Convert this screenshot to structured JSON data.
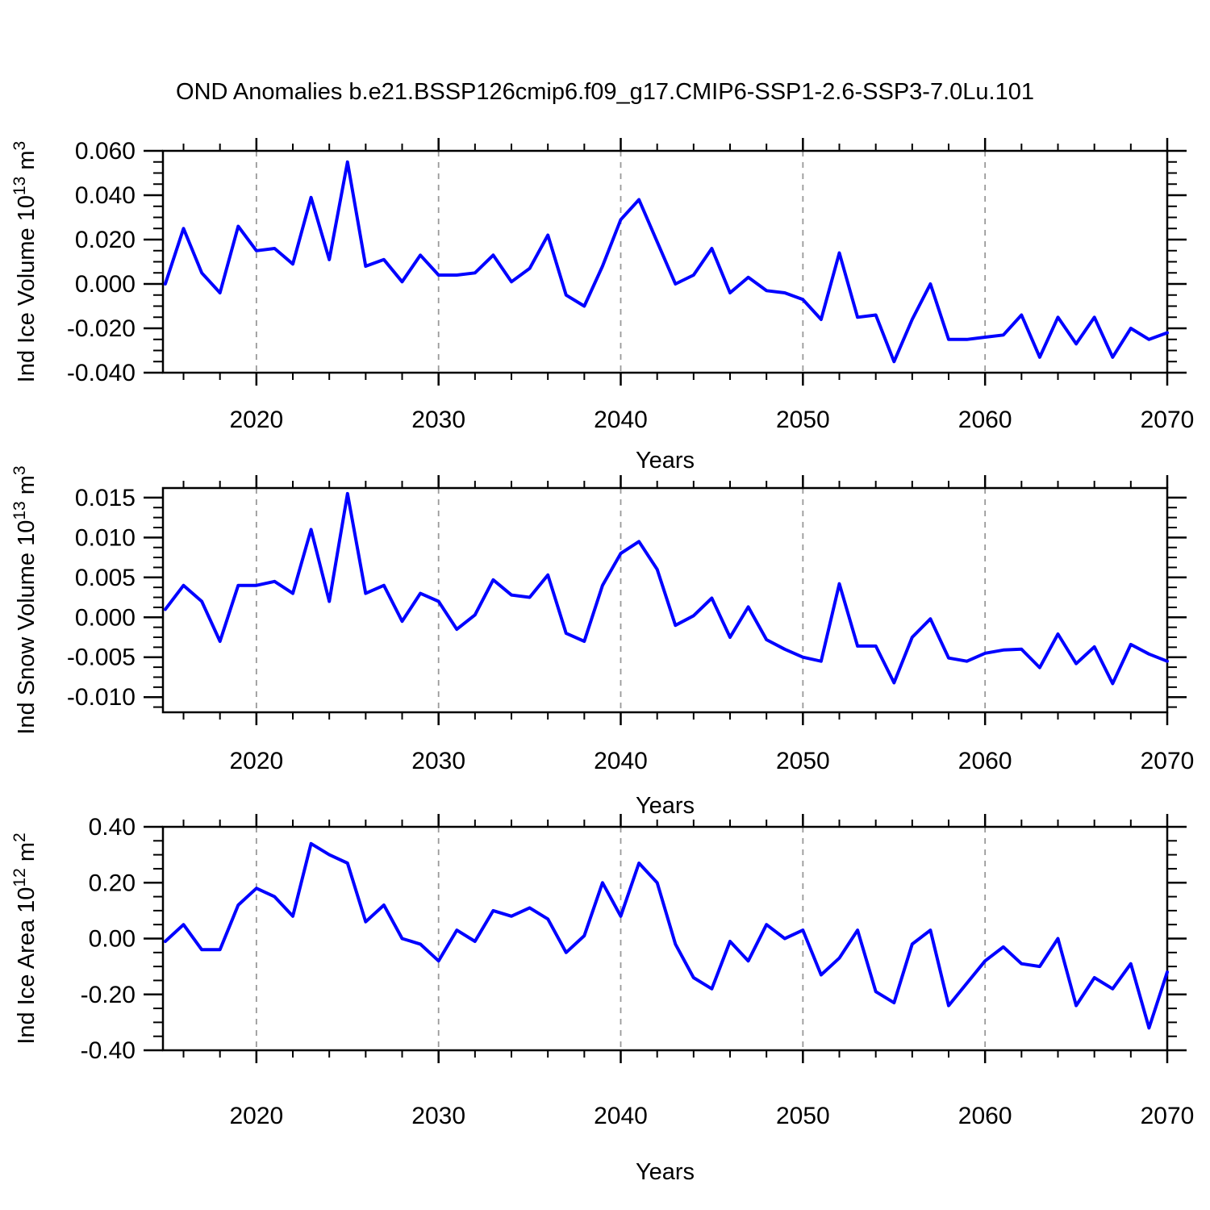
{
  "title": "OND Anomalies b.e21.BSSP126cmip6.f09_g17.CMIP6-SSP1-2.6-SSP3-7.0Lu.101",
  "style": {
    "line_color": "#0000ff",
    "grid_color": "#999999",
    "axis_color": "#000000",
    "background": "#ffffff"
  },
  "chart_data": [
    {
      "type": "line",
      "name": "ind-ice-volume",
      "ylabel": "Ind Ice Volume 10^13 m^3",
      "ylabel_parts": [
        {
          "t": "Ind Ice Volume 10"
        },
        {
          "t": "13",
          "sup": true
        },
        {
          "t": " m"
        },
        {
          "t": "3",
          "sup": true
        }
      ],
      "xlabel": "Years",
      "x": {
        "start": 2015,
        "end": 2070,
        "step": 1
      },
      "values": [
        0.0,
        0.025,
        0.005,
        -0.004,
        0.026,
        0.015,
        0.016,
        0.009,
        0.039,
        0.011,
        0.055,
        0.008,
        0.011,
        0.001,
        0.013,
        0.004,
        0.004,
        0.005,
        0.013,
        0.001,
        0.007,
        0.022,
        -0.005,
        -0.01,
        0.008,
        0.029,
        0.038,
        0.019,
        0.0,
        0.004,
        0.016,
        -0.004,
        0.003,
        -0.003,
        -0.004,
        -0.007,
        -0.016,
        0.014,
        -0.015,
        -0.014,
        -0.035,
        -0.016,
        0.0,
        -0.025,
        -0.025,
        -0.024,
        -0.023,
        -0.014,
        -0.033,
        -0.015,
        -0.027,
        -0.015,
        -0.033,
        -0.02,
        -0.025,
        -0.022
      ],
      "xlim": [
        2014.87,
        2070
      ],
      "ylim": [
        -0.04,
        0.06
      ],
      "xticks": [
        2020,
        2030,
        2040,
        2050,
        2060,
        2070
      ],
      "xtick_labels": [
        "2020",
        "2030",
        "2040",
        "2050",
        "2060",
        "2070"
      ],
      "x_minor_step": 2,
      "yticks": [
        0.06,
        0.04,
        0.02,
        0.0,
        -0.02,
        -0.04
      ],
      "ytick_labels": [
        "0.060",
        "0.040",
        "0.020",
        "0.000",
        "-0.020",
        "-0.040"
      ],
      "y_minor_step": 0.005,
      "grid_x": [
        2020,
        2030,
        2040,
        2050,
        2060
      ],
      "grid_on": "x-dashed",
      "legend": "none"
    },
    {
      "type": "line",
      "name": "ind-snow-volume",
      "ylabel": "Ind Snow Volume 10^13 m^3",
      "ylabel_parts": [
        {
          "t": "Ind Snow Volume 10"
        },
        {
          "t": "13",
          "sup": true
        },
        {
          "t": " m"
        },
        {
          "t": "3",
          "sup": true
        }
      ],
      "xlabel": "Years",
      "x": {
        "start": 2015,
        "end": 2070,
        "step": 1
      },
      "values": [
        0.001,
        0.004,
        0.002,
        -0.003,
        0.004,
        0.004,
        0.0045,
        0.003,
        0.011,
        0.002,
        0.0155,
        0.003,
        0.004,
        -0.0005,
        0.003,
        0.002,
        -0.0015,
        0.0003,
        0.0047,
        0.0028,
        0.0025,
        0.0053,
        -0.002,
        -0.003,
        0.004,
        0.008,
        0.0095,
        0.006,
        -0.001,
        0.0002,
        0.0024,
        -0.0025,
        0.0013,
        -0.0028,
        -0.004,
        -0.005,
        -0.0055,
        0.0042,
        -0.0036,
        -0.0036,
        -0.0082,
        -0.0025,
        -0.0002,
        -0.0051,
        -0.0055,
        -0.0045,
        -0.0041,
        -0.004,
        -0.0063,
        -0.0021,
        -0.0058,
        -0.0037,
        -0.0083,
        -0.0034,
        -0.0046,
        -0.0055
      ],
      "xlim": [
        2014.87,
        2070
      ],
      "ylim": [
        -0.0119,
        0.0162
      ],
      "xticks": [
        2020,
        2030,
        2040,
        2050,
        2060,
        2070
      ],
      "xtick_labels": [
        "2020",
        "2030",
        "2040",
        "2050",
        "2060",
        "2070"
      ],
      "x_minor_step": 2,
      "yticks": [
        0.015,
        0.01,
        0.005,
        0.0,
        -0.005,
        -0.01
      ],
      "ytick_labels": [
        "0.015",
        "0.010",
        "0.005",
        "0.000",
        "-0.005",
        "-0.010"
      ],
      "y_minor_step": 0.00125,
      "grid_x": [
        2020,
        2030,
        2040,
        2050,
        2060
      ],
      "grid_on": "x-dashed",
      "legend": "none"
    },
    {
      "type": "line",
      "name": "ind-ice-area",
      "ylabel": "Ind Ice Area 10^12 m^2",
      "ylabel_parts": [
        {
          "t": "Ind Ice Area 10"
        },
        {
          "t": "12",
          "sup": true
        },
        {
          "t": " m"
        },
        {
          "t": "2",
          "sup": true
        }
      ],
      "xlabel": "Years",
      "x": {
        "start": 2015,
        "end": 2070,
        "step": 1
      },
      "values": [
        -0.01,
        0.05,
        -0.04,
        -0.04,
        0.12,
        0.18,
        0.15,
        0.08,
        0.34,
        0.3,
        0.27,
        0.06,
        0.12,
        0.0,
        -0.02,
        -0.08,
        0.03,
        -0.01,
        0.1,
        0.08,
        0.11,
        0.07,
        -0.05,
        0.01,
        0.2,
        0.08,
        0.27,
        0.2,
        -0.02,
        -0.14,
        -0.18,
        -0.01,
        -0.08,
        0.05,
        0.0,
        0.03,
        -0.13,
        -0.07,
        0.03,
        -0.19,
        -0.23,
        -0.02,
        0.03,
        -0.24,
        -0.16,
        -0.08,
        -0.03,
        -0.09,
        -0.1,
        0.0,
        -0.24,
        -0.14,
        -0.18,
        -0.09,
        -0.32,
        -0.12
      ],
      "xlim": [
        2014.87,
        2070
      ],
      "ylim": [
        -0.4,
        0.4
      ],
      "xticks": [
        2020,
        2030,
        2040,
        2050,
        2060,
        2070
      ],
      "xtick_labels": [
        "2020",
        "2030",
        "2040",
        "2050",
        "2060",
        "2070"
      ],
      "x_minor_step": 2,
      "yticks": [
        0.4,
        0.2,
        0.0,
        -0.2,
        -0.4
      ],
      "ytick_labels": [
        "0.40",
        "0.20",
        "0.00",
        "-0.20",
        "-0.40"
      ],
      "y_minor_step": 0.05,
      "grid_x": [
        2020,
        2030,
        2040,
        2050,
        2060
      ],
      "grid_on": "x-dashed",
      "legend": "none"
    }
  ]
}
